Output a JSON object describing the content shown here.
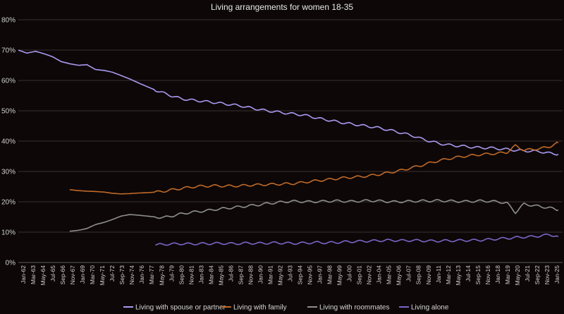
{
  "chart_data": {
    "type": "line",
    "title": "Living arrangements for women 18-35",
    "xlabel": "",
    "ylabel": "",
    "ylim": [
      0,
      80
    ],
    "y_ticks": [
      "0%",
      "10%",
      "20%",
      "30%",
      "40%",
      "50%",
      "60%",
      "70%",
      "80%"
    ],
    "x_ticks": [
      "Jan-62",
      "Mar-63",
      "May-64",
      "Jul-65",
      "Sep-66",
      "Nov-67",
      "Jan-69",
      "Mar-70",
      "May-71",
      "Jul-72",
      "Sep-73",
      "Nov-74",
      "Jan-76",
      "Mar-77",
      "May-78",
      "Jul-79",
      "Sep-80",
      "Nov-81",
      "Jan-83",
      "Mar-84",
      "May-85",
      "Jul-86",
      "Sep-87",
      "Nov-88",
      "Jan-90",
      "Mar-91",
      "May-92",
      "Jul-93",
      "Sep-94",
      "Nov-95",
      "Jan-97",
      "Mar-98",
      "May-99",
      "Jul-00",
      "Sep-01",
      "Nov-02",
      "Jan-04",
      "Mar-05",
      "May-06",
      "Jul-07",
      "Sep-08",
      "Nov-09",
      "Jan-11",
      "Mar-12",
      "May-13",
      "Jul-14",
      "Sep-15",
      "Nov-16",
      "Jan-18",
      "Mar-19",
      "May-20",
      "Jul-21",
      "Sep-22",
      "Nov-23",
      "Jan-25"
    ],
    "x_start_year": 1962,
    "x_end_year": 2025.5,
    "legend_position": "bottom",
    "grid": true,
    "series": [
      {
        "name": "Living with spouse or partner",
        "color": "#a89af0",
        "points": [
          [
            1962,
            70
          ],
          [
            1963,
            69
          ],
          [
            1964,
            69.6
          ],
          [
            1965,
            68.8
          ],
          [
            1966,
            67.8
          ],
          [
            1967,
            66.2
          ],
          [
            1968,
            65.5
          ],
          [
            1969,
            65
          ],
          [
            1970,
            65.2
          ],
          [
            1971,
            63.6
          ],
          [
            1972,
            63.3
          ],
          [
            1973,
            62.7
          ],
          [
            1974,
            61.6
          ],
          [
            1975,
            60.5
          ],
          [
            1976,
            59.2
          ],
          [
            1977,
            58
          ],
          [
            1978,
            56.8
          ],
          [
            1979,
            55.8
          ],
          [
            1980,
            54.8
          ],
          [
            1981,
            54
          ],
          [
            1982,
            53.6
          ],
          [
            1983,
            53.3
          ],
          [
            1984,
            53
          ],
          [
            1985,
            52.7
          ],
          [
            1986,
            52.3
          ],
          [
            1987,
            52
          ],
          [
            1988,
            51.6
          ],
          [
            1989,
            51
          ],
          [
            1990,
            50.5
          ],
          [
            1991,
            50
          ],
          [
            1992,
            49.7
          ],
          [
            1993,
            49.3
          ],
          [
            1994,
            49
          ],
          [
            1995,
            48.7
          ],
          [
            1996,
            48.2
          ],
          [
            1997,
            47.5
          ],
          [
            1998,
            47
          ],
          [
            1999,
            46.5
          ],
          [
            2000,
            46
          ],
          [
            2001,
            45.6
          ],
          [
            2002,
            45.2
          ],
          [
            2003,
            44.8
          ],
          [
            2004,
            44.4
          ],
          [
            2005,
            43.8
          ],
          [
            2006,
            43.2
          ],
          [
            2007,
            42.5
          ],
          [
            2008,
            41.8
          ],
          [
            2009,
            40.8
          ],
          [
            2010,
            40
          ],
          [
            2011,
            39.3
          ],
          [
            2012,
            38.8
          ],
          [
            2013,
            38.5
          ],
          [
            2014,
            38.3
          ],
          [
            2015,
            38
          ],
          [
            2016,
            37.8
          ],
          [
            2017,
            37.8
          ],
          [
            2018,
            37.5
          ],
          [
            2019,
            37.3
          ],
          [
            2020,
            37
          ],
          [
            2021,
            36.8
          ],
          [
            2022,
            36.7
          ],
          [
            2023,
            36.5
          ],
          [
            2024,
            36
          ],
          [
            2025,
            35.7
          ]
        ]
      },
      {
        "name": "Living with family",
        "color": "#c06a28",
        "points": [
          [
            1968,
            24
          ],
          [
            1969,
            23.7
          ],
          [
            1970,
            23.5
          ],
          [
            1971,
            23.4
          ],
          [
            1972,
            23.2
          ],
          [
            1973,
            22.8
          ],
          [
            1974,
            22.6
          ],
          [
            1975,
            22.7
          ],
          [
            1976,
            22.9
          ],
          [
            1977,
            23
          ],
          [
            1978,
            23.2
          ],
          [
            1979,
            23.5
          ],
          [
            1980,
            24
          ],
          [
            1981,
            24.4
          ],
          [
            1982,
            24.8
          ],
          [
            1983,
            25.1
          ],
          [
            1984,
            25.2
          ],
          [
            1985,
            25.3
          ],
          [
            1986,
            25.2
          ],
          [
            1987,
            25.2
          ],
          [
            1988,
            25.3
          ],
          [
            1989,
            25.5
          ],
          [
            1990,
            25.6
          ],
          [
            1991,
            25.7
          ],
          [
            1992,
            25.8
          ],
          [
            1993,
            25.9
          ],
          [
            1994,
            26
          ],
          [
            1995,
            26.3
          ],
          [
            1996,
            26.7
          ],
          [
            1997,
            27
          ],
          [
            1998,
            27.3
          ],
          [
            1999,
            27.6
          ],
          [
            2000,
            27.9
          ],
          [
            2001,
            28.1
          ],
          [
            2002,
            28.3
          ],
          [
            2003,
            28.6
          ],
          [
            2004,
            29
          ],
          [
            2005,
            29.5
          ],
          [
            2006,
            30
          ],
          [
            2007,
            30.6
          ],
          [
            2008,
            31.3
          ],
          [
            2009,
            32
          ],
          [
            2010,
            32.8
          ],
          [
            2011,
            33.5
          ],
          [
            2012,
            34.1
          ],
          [
            2013,
            34.6
          ],
          [
            2014,
            35
          ],
          [
            2015,
            35.3
          ],
          [
            2016,
            35.6
          ],
          [
            2017,
            35.8
          ],
          [
            2018,
            36
          ],
          [
            2019,
            36.3
          ],
          [
            2020,
            38.5
          ],
          [
            2021,
            37
          ],
          [
            2022,
            37.3
          ],
          [
            2023,
            37.6
          ],
          [
            2024,
            38.2
          ],
          [
            2025,
            39.5
          ]
        ]
      },
      {
        "name": "Living with roommates",
        "color": "#8e8e8e",
        "points": [
          [
            1968,
            10.3
          ],
          [
            1969,
            10.6
          ],
          [
            1970,
            11.2
          ],
          [
            1971,
            12.5
          ],
          [
            1972,
            13.2
          ],
          [
            1973,
            14.2
          ],
          [
            1974,
            15.3
          ],
          [
            1975,
            15.8
          ],
          [
            1976,
            15.6
          ],
          [
            1977,
            15.3
          ],
          [
            1978,
            15
          ],
          [
            1979,
            14.8
          ],
          [
            1980,
            15.4
          ],
          [
            1981,
            16
          ],
          [
            1982,
            16.5
          ],
          [
            1983,
            16.8
          ],
          [
            1984,
            17.1
          ],
          [
            1985,
            17.5
          ],
          [
            1986,
            17.8
          ],
          [
            1987,
            18.1
          ],
          [
            1988,
            18.4
          ],
          [
            1989,
            18.7
          ],
          [
            1990,
            19
          ],
          [
            1991,
            19.4
          ],
          [
            1992,
            19.7
          ],
          [
            1993,
            20
          ],
          [
            1994,
            20.2
          ],
          [
            1995,
            20.1
          ],
          [
            1996,
            20
          ],
          [
            1997,
            20.1
          ],
          [
            1998,
            20.2
          ],
          [
            1999,
            20.3
          ],
          [
            2000,
            20.2
          ],
          [
            2001,
            20.1
          ],
          [
            2002,
            20.3
          ],
          [
            2003,
            20.4
          ],
          [
            2004,
            20.3
          ],
          [
            2005,
            20.1
          ],
          [
            2006,
            20
          ],
          [
            2007,
            20.1
          ],
          [
            2008,
            20.2
          ],
          [
            2009,
            20.3
          ],
          [
            2010,
            20.3
          ],
          [
            2011,
            20.4
          ],
          [
            2012,
            20.3
          ],
          [
            2013,
            20.2
          ],
          [
            2014,
            20.1
          ],
          [
            2015,
            20.2
          ],
          [
            2016,
            20.3
          ],
          [
            2017,
            20.2
          ],
          [
            2018,
            20
          ],
          [
            2019,
            19.6
          ],
          [
            2020,
            16.5
          ],
          [
            2021,
            19.3
          ],
          [
            2022,
            18.8
          ],
          [
            2023,
            18.4
          ],
          [
            2024,
            18
          ],
          [
            2025,
            17.3
          ]
        ]
      },
      {
        "name": "Living alone",
        "color": "#7a66c8",
        "points": [
          [
            1978,
            5.8
          ],
          [
            1979,
            6
          ],
          [
            1980,
            6.1
          ],
          [
            1981,
            6.2
          ],
          [
            1982,
            6.1
          ],
          [
            1983,
            6.2
          ],
          [
            1984,
            6.2
          ],
          [
            1985,
            6.3
          ],
          [
            1986,
            6.3
          ],
          [
            1987,
            6.2
          ],
          [
            1988,
            6.3
          ],
          [
            1989,
            6.4
          ],
          [
            1990,
            6.3
          ],
          [
            1991,
            6.4
          ],
          [
            1992,
            6.5
          ],
          [
            1993,
            6.4
          ],
          [
            1994,
            6.3
          ],
          [
            1995,
            6.4
          ],
          [
            1996,
            6.5
          ],
          [
            1997,
            6.6
          ],
          [
            1998,
            6.5
          ],
          [
            1999,
            6.6
          ],
          [
            2000,
            6.8
          ],
          [
            2001,
            6.9
          ],
          [
            2002,
            7
          ],
          [
            2003,
            7.1
          ],
          [
            2004,
            7.2
          ],
          [
            2005,
            7.3
          ],
          [
            2006,
            7.3
          ],
          [
            2007,
            7.2
          ],
          [
            2008,
            7.3
          ],
          [
            2009,
            7.2
          ],
          [
            2010,
            7.1
          ],
          [
            2011,
            7.1
          ],
          [
            2012,
            7.2
          ],
          [
            2013,
            7.2
          ],
          [
            2014,
            7.3
          ],
          [
            2015,
            7.3
          ],
          [
            2016,
            7.4
          ],
          [
            2017,
            7.6
          ],
          [
            2018,
            7.8
          ],
          [
            2019,
            8
          ],
          [
            2020,
            8.2
          ],
          [
            2021,
            8.4
          ],
          [
            2022,
            8.5
          ],
          [
            2023,
            8.8
          ],
          [
            2024,
            9.2
          ],
          [
            2025,
            8.5
          ]
        ]
      }
    ]
  }
}
